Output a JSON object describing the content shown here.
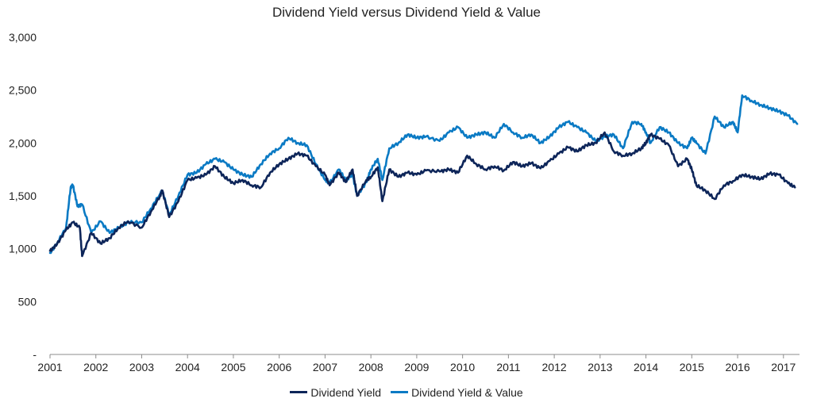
{
  "chart_data": {
    "type": "line",
    "title": "Dividend Yield versus Dividend Yield & Value",
    "xlabel": "",
    "ylabel": "",
    "xlim": [
      2001.0,
      2017.35
    ],
    "ylim": [
      0,
      3000
    ],
    "x_ticks": [
      2001,
      2002,
      2003,
      2004,
      2005,
      2006,
      2007,
      2008,
      2009,
      2010,
      2011,
      2012,
      2013,
      2014,
      2015,
      2016,
      2017
    ],
    "x_tick_labels": [
      "2001",
      "2002",
      "2003",
      "2004",
      "2005",
      "2006",
      "2007",
      "2008",
      "2009",
      "2010",
      "2011",
      "2012",
      "2013",
      "2014",
      "2015",
      "2016",
      "2017"
    ],
    "y_ticks": [
      0,
      500,
      1000,
      1500,
      2000,
      2500,
      3000
    ],
    "y_tick_labels": [
      "-",
      "500",
      "1,000",
      "1,500",
      "2,000",
      "2,500",
      "3,000"
    ],
    "grid": false,
    "legend_position": "bottom-center",
    "series": [
      {
        "name": "Dividend Yield",
        "color": "#0d2559",
        "x": [
          2001.0,
          2001.15,
          2001.35,
          2001.5,
          2001.65,
          2001.7,
          2001.9,
          2002.1,
          2002.3,
          2002.5,
          2002.7,
          2003.0,
          2003.2,
          2003.4,
          2003.45,
          2003.6,
          2003.8,
          2004.0,
          2004.2,
          2004.4,
          2004.6,
          2004.8,
          2005.0,
          2005.2,
          2005.4,
          2005.6,
          2005.8,
          2006.0,
          2006.2,
          2006.4,
          2006.6,
          2006.8,
          2007.0,
          2007.1,
          2007.3,
          2007.45,
          2007.6,
          2007.7,
          2007.9,
          2008.0,
          2008.15,
          2008.25,
          2008.4,
          2008.6,
          2008.8,
          2009.0,
          2009.2,
          2009.5,
          2009.7,
          2009.9,
          2010.1,
          2010.3,
          2010.5,
          2010.7,
          2010.9,
          2011.1,
          2011.3,
          2011.5,
          2011.7,
          2011.9,
          2012.1,
          2012.3,
          2012.5,
          2012.7,
          2012.9,
          2013.1,
          2013.3,
          2013.5,
          2013.7,
          2013.9,
          2014.0,
          2014.1,
          2014.3,
          2014.5,
          2014.7,
          2014.9,
          2015.0,
          2015.1,
          2015.3,
          2015.5,
          2015.7,
          2015.9,
          2016.1,
          2016.3,
          2016.5,
          2016.7,
          2016.9,
          2017.1,
          2017.25
        ],
        "values": [
          980,
          1040,
          1180,
          1250,
          1200,
          930,
          1150,
          1050,
          1100,
          1200,
          1260,
          1200,
          1350,
          1500,
          1550,
          1300,
          1450,
          1650,
          1670,
          1700,
          1780,
          1680,
          1620,
          1650,
          1600,
          1580,
          1720,
          1800,
          1850,
          1900,
          1880,
          1780,
          1700,
          1600,
          1720,
          1630,
          1750,
          1500,
          1650,
          1680,
          1770,
          1450,
          1750,
          1680,
          1720,
          1700,
          1740,
          1730,
          1750,
          1720,
          1880,
          1800,
          1750,
          1780,
          1740,
          1820,
          1780,
          1810,
          1760,
          1830,
          1900,
          1960,
          1920,
          1980,
          2000,
          2100,
          1920,
          1880,
          1900,
          1950,
          2000,
          2080,
          2040,
          1980,
          1780,
          1850,
          1750,
          1600,
          1550,
          1470,
          1600,
          1640,
          1700,
          1680,
          1660,
          1710,
          1700,
          1620,
          1580
        ]
      },
      {
        "name": "Dividend Yield & Value",
        "color": "#0a7ac4",
        "x": [
          2001.0,
          2001.15,
          2001.35,
          2001.45,
          2001.5,
          2001.6,
          2001.7,
          2001.9,
          2002.1,
          2002.3,
          2002.5,
          2002.7,
          2003.0,
          2003.2,
          2003.4,
          2003.45,
          2003.6,
          2003.8,
          2004.0,
          2004.2,
          2004.4,
          2004.6,
          2004.8,
          2005.0,
          2005.2,
          2005.4,
          2005.6,
          2005.8,
          2006.0,
          2006.2,
          2006.4,
          2006.6,
          2006.8,
          2007.0,
          2007.1,
          2007.3,
          2007.45,
          2007.6,
          2007.7,
          2007.9,
          2008.0,
          2008.15,
          2008.25,
          2008.4,
          2008.6,
          2008.8,
          2009.0,
          2009.2,
          2009.5,
          2009.7,
          2009.9,
          2010.1,
          2010.3,
          2010.5,
          2010.7,
          2010.9,
          2011.1,
          2011.3,
          2011.5,
          2011.7,
          2011.9,
          2012.1,
          2012.3,
          2012.5,
          2012.7,
          2012.9,
          2013.1,
          2013.3,
          2013.5,
          2013.7,
          2013.9,
          2014.0,
          2014.1,
          2014.3,
          2014.5,
          2014.7,
          2014.9,
          2015.0,
          2015.1,
          2015.3,
          2015.5,
          2015.7,
          2015.9,
          2016.0,
          2016.1,
          2016.3,
          2016.5,
          2016.7,
          2016.9,
          2017.1,
          2017.3
        ],
        "values": [
          960,
          1050,
          1200,
          1580,
          1600,
          1400,
          1420,
          1150,
          1260,
          1150,
          1200,
          1250,
          1250,
          1380,
          1520,
          1550,
          1320,
          1500,
          1700,
          1720,
          1800,
          1850,
          1820,
          1750,
          1700,
          1680,
          1800,
          1900,
          1950,
          2050,
          2000,
          1980,
          1800,
          1650,
          1620,
          1750,
          1650,
          1700,
          1500,
          1630,
          1750,
          1850,
          1650,
          1950,
          2000,
          2080,
          2050,
          2060,
          2020,
          2100,
          2150,
          2050,
          2080,
          2100,
          2050,
          2180,
          2100,
          2050,
          2080,
          2000,
          2060,
          2150,
          2200,
          2150,
          2100,
          2020,
          2060,
          2080,
          1950,
          2200,
          2180,
          2100,
          2000,
          2150,
          2100,
          2000,
          1950,
          2050,
          2000,
          1900,
          2250,
          2150,
          2200,
          2100,
          2450,
          2400,
          2360,
          2330,
          2300,
          2260,
          2180
        ]
      }
    ]
  }
}
